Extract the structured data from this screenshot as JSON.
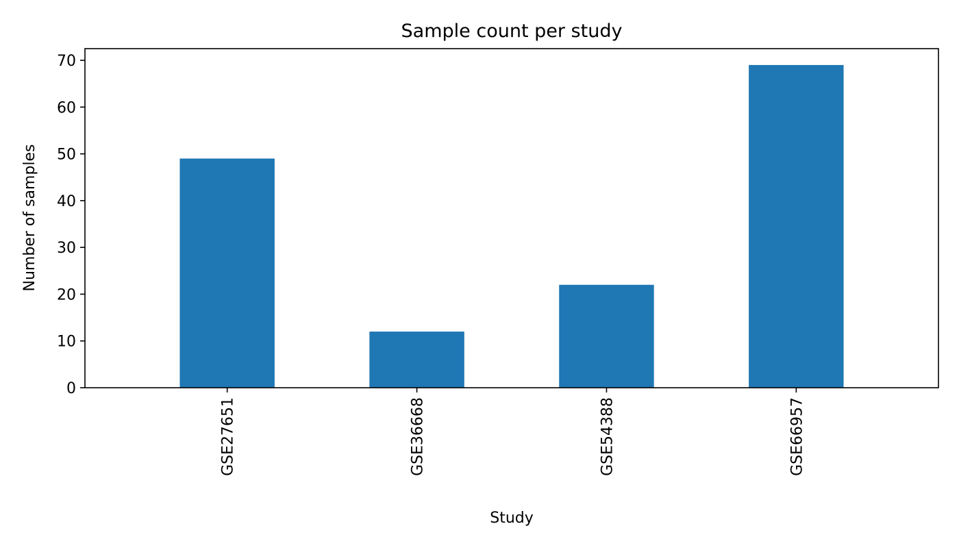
{
  "chart_data": {
    "type": "bar",
    "title": "Sample count per study",
    "xlabel": "Study",
    "ylabel": "Number of samples",
    "categories": [
      "GSE27651",
      "GSE36668",
      "GSE54388",
      "GSE66957"
    ],
    "values": [
      49,
      12,
      22,
      69
    ],
    "ylim": [
      0,
      72.5
    ],
    "yticks": [
      0,
      10,
      20,
      30,
      40,
      50,
      60,
      70
    ],
    "bar_color": "#1f77b4",
    "grid": false,
    "legend": "none"
  }
}
